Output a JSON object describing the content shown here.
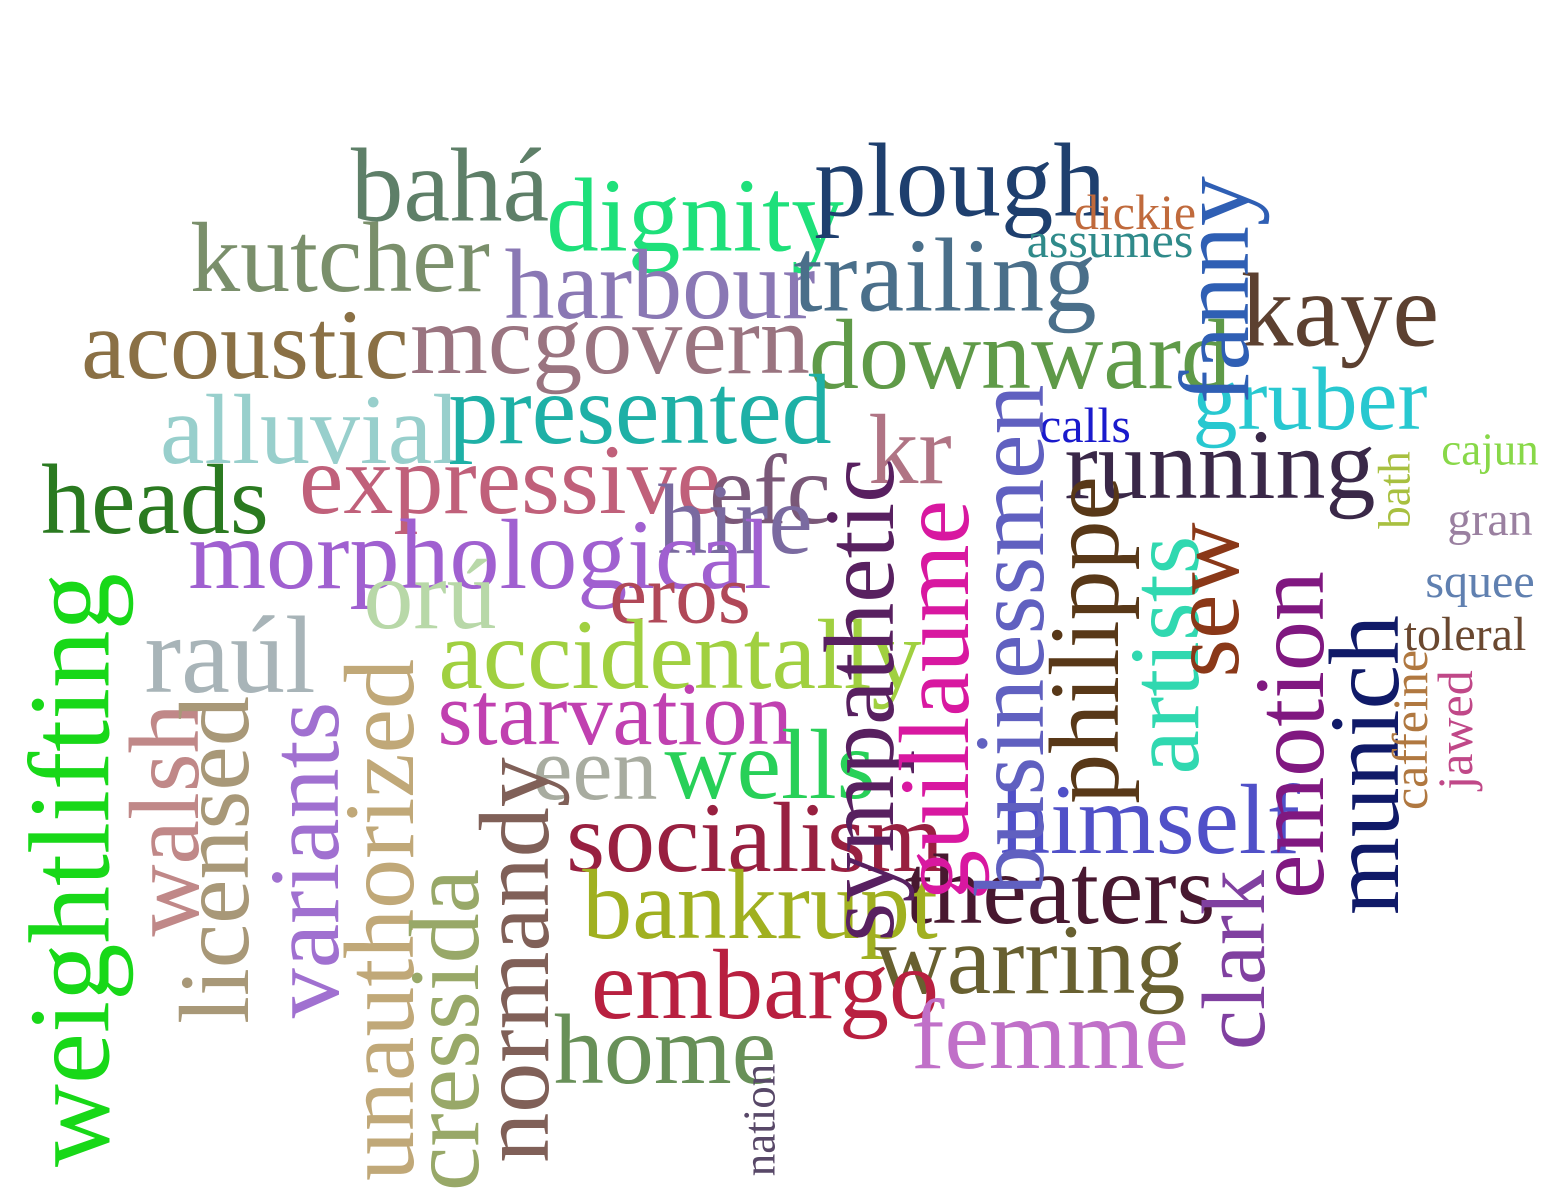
{
  "words": [
    {
      "text": "bahá",
      "color": "#5e7f68"
    },
    {
      "text": "dignity",
      "color": "#1ee07a"
    },
    {
      "text": "plough",
      "color": "#1e3f6e"
    },
    {
      "text": "dickie",
      "color": "#c06a3c"
    },
    {
      "text": "assumes",
      "color": "#2f8a8a"
    },
    {
      "text": "kutcher",
      "color": "#7a8f6b"
    },
    {
      "text": "harbour",
      "color": "#8a78b4"
    },
    {
      "text": "trailing",
      "color": "#4a6f8a"
    },
    {
      "text": "fanny",
      "color": "#2f5fb4"
    },
    {
      "text": "kaye",
      "color": "#5c4030"
    },
    {
      "text": "acoustic",
      "color": "#8a7045"
    },
    {
      "text": "mcgovern",
      "color": "#9a7480"
    },
    {
      "text": "downward",
      "color": "#5f9a48"
    },
    {
      "text": "alluvial",
      "color": "#98cfcc"
    },
    {
      "text": "presented",
      "color": "#1eb0a6"
    },
    {
      "text": "calls",
      "color": "#1a1acc"
    },
    {
      "text": "gruber",
      "color": "#28c8d0"
    },
    {
      "text": "cajun",
      "color": "#88d848"
    },
    {
      "text": "heads",
      "color": "#2a7a20"
    },
    {
      "text": "expressive",
      "color": "#c0607a"
    },
    {
      "text": "kr",
      "color": "#b07484"
    },
    {
      "text": "running",
      "color": "#3a2848"
    },
    {
      "text": "efc",
      "color": "#7a5878"
    },
    {
      "text": "hire",
      "color": "#7a6aa0"
    },
    {
      "text": "morphological",
      "color": "#a060d0"
    },
    {
      "text": "gran",
      "color": "#9a80a0"
    },
    {
      "text": "squee",
      "color": "#6080b0"
    },
    {
      "text": "toleral",
      "color": "#6a4830"
    },
    {
      "text": "bath",
      "color": "#a8c040"
    },
    {
      "text": "orú",
      "color": "#b8d8a8"
    },
    {
      "text": "eros",
      "color": "#b04858"
    },
    {
      "text": "raúl",
      "color": "#a8b4b8"
    },
    {
      "text": "accidentally",
      "color": "#a0d040"
    },
    {
      "text": "starvation",
      "color": "#c040b0"
    },
    {
      "text": "een",
      "color": "#a8aca0"
    },
    {
      "text": "wells",
      "color": "#28d058"
    },
    {
      "text": "socialism",
      "color": "#982040"
    },
    {
      "text": "himself",
      "color": "#5050c8"
    },
    {
      "text": "theaters",
      "color": "#481830"
    },
    {
      "text": "bankrupt",
      "color": "#a0b020"
    },
    {
      "text": "warring",
      "color": "#686030"
    },
    {
      "text": "embargo",
      "color": "#b82040"
    },
    {
      "text": "femme",
      "color": "#c070c8"
    },
    {
      "text": "home",
      "color": "#689058"
    },
    {
      "text": "weightlifting",
      "color": "#18d818"
    },
    {
      "text": "walsh",
      "color": "#c08888"
    },
    {
      "text": "licensed",
      "color": "#a89878"
    },
    {
      "text": "variants",
      "color": "#a070d0"
    },
    {
      "text": "unauthorized",
      "color": "#c0a878"
    },
    {
      "text": "cressida",
      "color": "#98a868"
    },
    {
      "text": "normandy",
      "color": "#806058"
    },
    {
      "text": "nation",
      "color": "#584868"
    },
    {
      "text": "sympathetic",
      "color": "#582060"
    },
    {
      "text": "guillaume",
      "color": "#d818a0"
    },
    {
      "text": "businessmen",
      "color": "#6060c0"
    },
    {
      "text": "philippe",
      "color": "#583818"
    },
    {
      "text": "artists",
      "color": "#30d8b0"
    },
    {
      "text": "sew",
      "color": "#8a3818"
    },
    {
      "text": "clark",
      "color": "#8040a0"
    },
    {
      "text": "emotion",
      "color": "#801880"
    },
    {
      "text": "munich",
      "color": "#101a68"
    },
    {
      "text": "caffeine",
      "color": "#b07840"
    },
    {
      "text": "jawed",
      "color": "#c04888"
    }
  ]
}
